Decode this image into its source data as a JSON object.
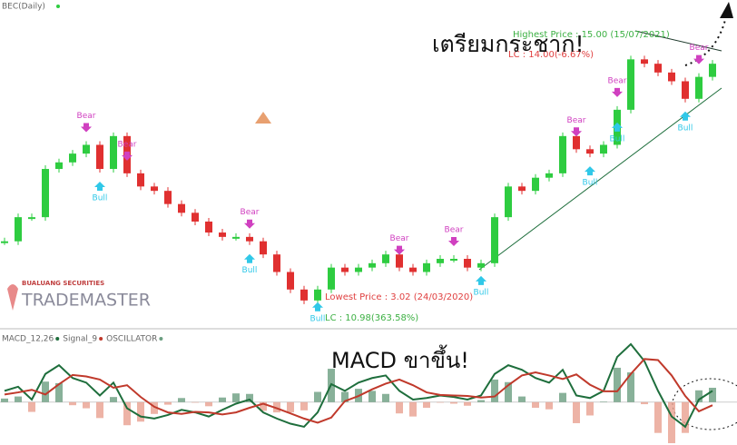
{
  "chart_data": [
    {
      "type": "candle",
      "title": "BEC(Daily)",
      "annotations": [
        "Highest Price : 15.00 (15/07/2021)",
        "LC : 14.00(-6.67%)",
        "Lowest Price : 3.02 (24/03/2020)",
        "LC : 10.98(363.58%)",
        "เตรียมกระชาก!"
      ],
      "logo": [
        "BUALUANG SECURITIES",
        "TRADEMASTER"
      ],
      "ylim": [
        2,
        16.5
      ],
      "values": [
        5.7,
        6.8,
        6.8,
        9.0,
        9.3,
        9.7,
        10.1,
        9.0,
        10.5,
        8.8,
        8.2,
        8.0,
        7.4,
        7.0,
        6.6,
        6.1,
        5.9,
        5.9,
        5.7,
        5.1,
        4.3,
        3.5,
        3.0,
        3.5,
        4.5,
        4.3,
        4.5,
        4.7,
        5.1,
        4.5,
        4.3,
        4.7,
        4.9,
        4.9,
        4.5,
        4.7,
        6.8,
        8.2,
        8.0,
        8.6,
        8.8,
        10.5,
        9.9,
        9.7,
        10.1,
        11.7,
        14.0,
        13.8,
        13.4,
        13.0,
        12.2,
        13.2,
        13.8
      ],
      "signals": [
        {
          "label": "Bear",
          "index": 6
        },
        {
          "label": "Bear",
          "index": 9
        },
        {
          "label": "Bear",
          "index": 18
        },
        {
          "label": "Bear",
          "index": 29
        },
        {
          "label": "Bear",
          "index": 33
        },
        {
          "label": "Bear",
          "index": 42
        },
        {
          "label": "Bear",
          "index": 45
        },
        {
          "label": "Bear",
          "index": 51
        },
        {
          "label": "Bull",
          "index": 7
        },
        {
          "label": "Bull",
          "index": 18
        },
        {
          "label": "Bull",
          "index": 23
        },
        {
          "label": "Bull",
          "index": 35
        },
        {
          "label": "Bull",
          "index": 43
        },
        {
          "label": "Bull",
          "index": 45
        },
        {
          "label": "Bull",
          "index": 50
        }
      ]
    },
    {
      "type": "macd",
      "annotation": "MACD ขาขึ้น!",
      "ylim": [
        -0.8,
        1.2
      ],
      "series": [
        {
          "name": "MACD_12,26",
          "color": "#1e6e3c",
          "values": [
            0.22,
            0.3,
            0.05,
            0.55,
            0.72,
            0.47,
            0.38,
            0.13,
            0.38,
            -0.12,
            -0.28,
            -0.32,
            -0.25,
            -0.15,
            -0.2,
            -0.28,
            -0.15,
            -0.03,
            0.05,
            -0.2,
            -0.32,
            -0.42,
            -0.48,
            -0.2,
            0.35,
            0.22,
            0.38,
            0.47,
            0.52,
            0.22,
            0.05,
            0.08,
            0.13,
            0.1,
            0.05,
            0.13,
            0.55,
            0.72,
            0.63,
            0.47,
            0.38,
            0.63,
            0.13,
            0.08,
            0.22,
            0.88,
            1.13,
            0.8,
            0.22,
            -0.28,
            -0.48,
            0.05,
            0.22
          ]
        },
        {
          "name": "Signal_9",
          "color": "#c0392b",
          "values": [
            0.15,
            0.19,
            0.24,
            0.15,
            0.35,
            0.53,
            0.5,
            0.44,
            0.28,
            0.33,
            0.1,
            -0.09,
            -0.2,
            -0.23,
            -0.19,
            -0.2,
            -0.24,
            -0.2,
            -0.11,
            -0.03,
            -0.12,
            -0.22,
            -0.32,
            -0.4,
            -0.3,
            0.02,
            0.12,
            0.25,
            0.36,
            0.44,
            0.33,
            0.19,
            0.14,
            0.13,
            0.12,
            0.09,
            0.11,
            0.33,
            0.52,
            0.58,
            0.52,
            0.45,
            0.54,
            0.34,
            0.21,
            0.21,
            0.55,
            0.84,
            0.82,
            0.52,
            0.12,
            -0.18,
            -0.06
          ]
        },
        {
          "name": "OSCILLATOR",
          "color": "#6a9e80",
          "values": [
            0.07,
            0.11,
            -0.19,
            0.4,
            0.37,
            -0.06,
            -0.12,
            -0.31,
            0.1,
            -0.45,
            -0.38,
            -0.23,
            -0.05,
            0.08,
            -0.01,
            -0.08,
            0.09,
            0.17,
            0.16,
            -0.17,
            -0.2,
            -0.2,
            -0.16,
            0.2,
            0.65,
            0.2,
            0.26,
            0.22,
            0.16,
            -0.22,
            -0.28,
            -0.11,
            -0.01,
            -0.03,
            -0.07,
            0.04,
            0.44,
            0.39,
            0.11,
            -0.11,
            -0.14,
            0.18,
            -0.41,
            -0.26,
            0.01,
            0.67,
            0.58,
            -0.04,
            -0.6,
            -0.8,
            -0.6,
            0.23,
            0.28
          ]
        }
      ]
    }
  ]
}
